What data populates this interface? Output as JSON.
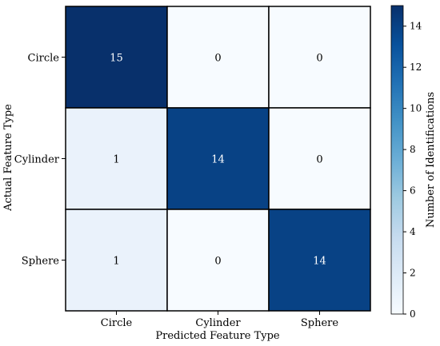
{
  "chart_data": {
    "type": "heatmap",
    "title": "",
    "xlabel": "Predicted Feature Type",
    "ylabel": "Actual Feature Type",
    "x_categories": [
      "Circle",
      "Cylinder",
      "Sphere"
    ],
    "y_categories": [
      "Circle",
      "Cylinder",
      "Sphere"
    ],
    "values": [
      [
        15,
        0,
        0
      ],
      [
        1,
        14,
        0
      ],
      [
        1,
        0,
        14
      ]
    ],
    "colorbar": {
      "label": "Number of Identifications",
      "range": [
        0,
        15
      ],
      "ticks": [
        0,
        2,
        4,
        6,
        8,
        10,
        12,
        14
      ]
    },
    "colormap": "Blues",
    "grid": false,
    "legend": "colorbar-right"
  }
}
